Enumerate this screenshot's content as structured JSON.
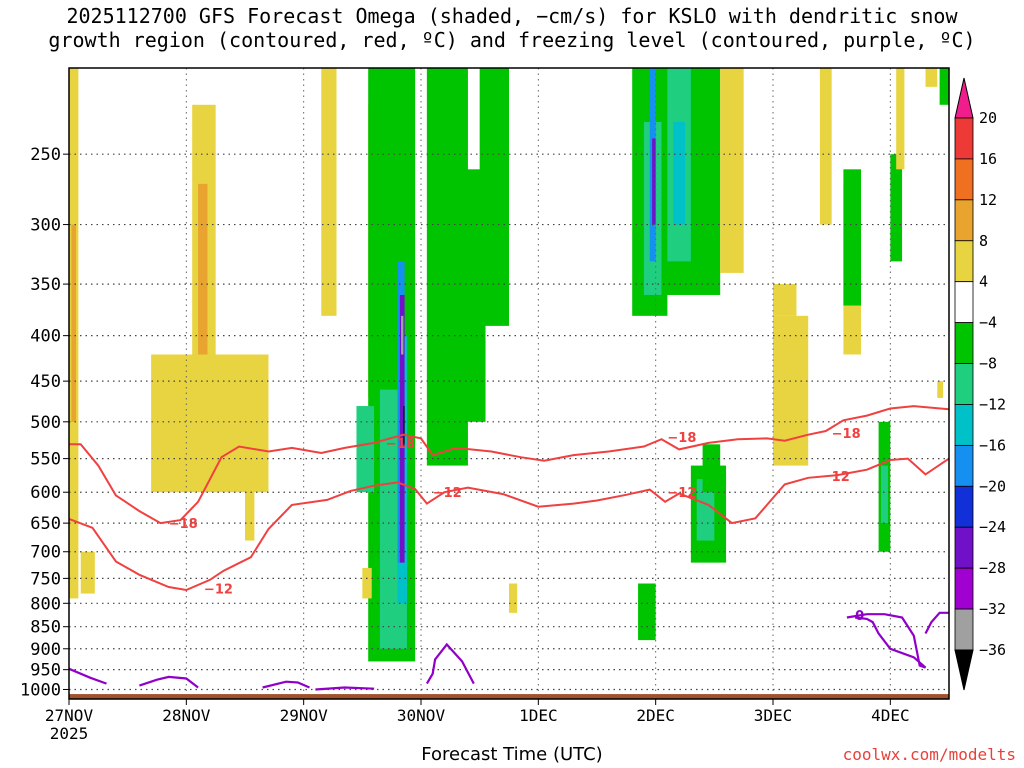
{
  "chart_data": {
    "type": "heatmap",
    "title_line1": "2025112700 GFS Forecast Omega (shaded, −cm/s) for KSLO with dendritic snow",
    "title_line2": "growth region (contoured, red, ºC) and freezing level (contoured, purple, ºC)",
    "xlabel": "Forecast Time (UTC)",
    "credit": "coolwx.com/modelts",
    "x_ticks": [
      {
        "label": "27NOV",
        "sub": "2025",
        "day": 0
      },
      {
        "label": "28NOV",
        "day": 1
      },
      {
        "label": "29NOV",
        "day": 2
      },
      {
        "label": "30NOV",
        "day": 3
      },
      {
        "label": "1DEC",
        "day": 4
      },
      {
        "label": "2DEC",
        "day": 5
      },
      {
        "label": "3DEC",
        "day": 6
      },
      {
        "label": "4DEC",
        "day": 7
      }
    ],
    "xlim": [
      0,
      7.5
    ],
    "y_ticks": [
      250,
      300,
      350,
      400,
      450,
      500,
      550,
      600,
      650,
      700,
      750,
      800,
      850,
      900,
      950,
      1000
    ],
    "ylim": [
      1025,
      200
    ],
    "y_log": true,
    "grid": true,
    "colorbar": {
      "labels": [
        "20",
        "16",
        "12",
        "8",
        "4",
        "−4",
        "−8",
        "−12",
        "−16",
        "−20",
        "−24",
        "−28",
        "−32",
        "−36"
      ],
      "colors": [
        "#f01e8c",
        "#ee3a36",
        "#ee7020",
        "#e9a430",
        "#e8d440",
        "#ffffff",
        "#00c400",
        "#1fce7e",
        "#00c0c8",
        "#1690f0",
        "#1230d8",
        "#7010c8",
        "#a000d0",
        "#a0a0a0",
        "#000000"
      ]
    },
    "contour_labels": [
      "−18",
      "−12",
      "−18",
      "−12",
      "−18",
      "12",
      "−18",
      "−12",
      "0"
    ],
    "dgz_top": [
      [
        0,
        530
      ],
      [
        0.1,
        530
      ],
      [
        0.25,
        560
      ],
      [
        0.4,
        605
      ],
      [
        0.6,
        630
      ],
      [
        0.78,
        650
      ],
      [
        0.95,
        645
      ],
      [
        1.1,
        615
      ],
      [
        1.3,
        548
      ],
      [
        1.45,
        533
      ],
      [
        1.7,
        540
      ],
      [
        1.9,
        535
      ],
      [
        2.15,
        542
      ],
      [
        2.35,
        535
      ],
      [
        2.6,
        528
      ],
      [
        2.85,
        517
      ],
      [
        3.0,
        522
      ],
      [
        3.1,
        545
      ],
      [
        3.3,
        535
      ],
      [
        3.6,
        540
      ],
      [
        3.85,
        548
      ],
      [
        4.05,
        553
      ],
      [
        4.3,
        545
      ],
      [
        4.6,
        540
      ],
      [
        4.9,
        533
      ],
      [
        5.05,
        523
      ],
      [
        5.2,
        537
      ],
      [
        5.45,
        528
      ],
      [
        5.7,
        523
      ],
      [
        5.95,
        522
      ],
      [
        6.1,
        525
      ],
      [
        6.3,
        517
      ],
      [
        6.45,
        512
      ],
      [
        6.6,
        498
      ],
      [
        6.8,
        492
      ],
      [
        7.0,
        483
      ],
      [
        7.2,
        480
      ],
      [
        7.5,
        484
      ]
    ],
    "dgz_bottom": [
      [
        0,
        643
      ],
      [
        0.2,
        658
      ],
      [
        0.4,
        718
      ],
      [
        0.6,
        743
      ],
      [
        0.85,
        767
      ],
      [
        1.0,
        773
      ],
      [
        1.2,
        753
      ],
      [
        1.32,
        735
      ],
      [
        1.55,
        710
      ],
      [
        1.7,
        660
      ],
      [
        1.9,
        620
      ],
      [
        2.2,
        612
      ],
      [
        2.4,
        598
      ],
      [
        2.6,
        590
      ],
      [
        2.8,
        585
      ],
      [
        2.95,
        595
      ],
      [
        3.05,
        618
      ],
      [
        3.2,
        600
      ],
      [
        3.4,
        593
      ],
      [
        3.7,
        603
      ],
      [
        4.0,
        623
      ],
      [
        4.3,
        618
      ],
      [
        4.5,
        613
      ],
      [
        4.75,
        604
      ],
      [
        4.95,
        596
      ],
      [
        5.08,
        615
      ],
      [
        5.2,
        602
      ],
      [
        5.45,
        620
      ],
      [
        5.65,
        650
      ],
      [
        5.85,
        642
      ],
      [
        6.1,
        588
      ],
      [
        6.3,
        578
      ],
      [
        6.55,
        574
      ],
      [
        6.8,
        566
      ],
      [
        7.0,
        552
      ],
      [
        7.15,
        550
      ],
      [
        7.3,
        573
      ],
      [
        7.5,
        550
      ]
    ],
    "freezing_level_segments": [
      [
        [
          0,
          948
        ],
        [
          0.18,
          970
        ],
        [
          0.32,
          985
        ]
      ],
      [
        [
          0.6,
          990
        ],
        [
          0.75,
          975
        ],
        [
          0.85,
          968
        ],
        [
          1.0,
          972
        ],
        [
          1.1,
          995
        ]
      ],
      [
        [
          1.65,
          995
        ],
        [
          1.85,
          980
        ],
        [
          1.95,
          982
        ],
        [
          2.05,
          995
        ]
      ],
      [
        [
          2.1,
          1000
        ],
        [
          2.35,
          995
        ],
        [
          2.6,
          998
        ]
      ],
      [
        [
          3.05,
          985
        ],
        [
          3.1,
          960
        ],
        [
          3.12,
          925
        ],
        [
          3.22,
          890
        ],
        [
          3.35,
          930
        ],
        [
          3.45,
          985
        ]
      ],
      [
        [
          6.63,
          830
        ],
        [
          6.8,
          823
        ],
        [
          6.95,
          823
        ],
        [
          7.1,
          830
        ],
        [
          7.2,
          870
        ],
        [
          7.25,
          940
        ],
        [
          7.3,
          945
        ],
        [
          7.2,
          920
        ],
        [
          7.0,
          900
        ],
        [
          6.9,
          865
        ],
        [
          6.85,
          840
        ],
        [
          6.8,
          833
        ],
        [
          6.7,
          830
        ]
      ],
      [
        [
          7.3,
          865
        ],
        [
          7.35,
          840
        ],
        [
          7.42,
          820
        ],
        [
          7.5,
          820
        ]
      ]
    ],
    "shaded_regions": [
      {
        "color": "#e8d440",
        "x0": 0.0,
        "x1": 0.08,
        "p0": 200,
        "p1": 790
      },
      {
        "color": "#e9a430",
        "x0": 0.02,
        "x1": 0.06,
        "p0": 300,
        "p1": 500
      },
      {
        "color": "#e8d440",
        "x0": 0.1,
        "x1": 0.22,
        "p0": 700,
        "p1": 780
      },
      {
        "color": "#e8d440",
        "x0": 1.05,
        "x1": 1.25,
        "p0": 220,
        "p1": 560
      },
      {
        "color": "#e9a430",
        "x0": 1.1,
        "x1": 1.18,
        "p0": 270,
        "p1": 440
      },
      {
        "color": "#e8d440",
        "x0": 0.7,
        "x1": 1.7,
        "p0": 420,
        "p1": 600
      },
      {
        "color": "#e8d440",
        "x0": 1.5,
        "x1": 1.58,
        "p0": 470,
        "p1": 680
      },
      {
        "color": "#e8d440",
        "x0": 2.15,
        "x1": 2.28,
        "p0": 200,
        "p1": 380
      },
      {
        "color": "#e8d440",
        "x0": 2.55,
        "x1": 2.75,
        "p0": 220,
        "p1": 470
      },
      {
        "color": "#00c400",
        "x0": 2.55,
        "x1": 2.95,
        "p0": 200,
        "p1": 930
      },
      {
        "color": "#00c400",
        "x0": 3.05,
        "x1": 3.4,
        "p0": 200,
        "p1": 560
      },
      {
        "color": "#00c400",
        "x0": 3.15,
        "x1": 3.55,
        "p0": 260,
        "p1": 500
      },
      {
        "color": "#1fce7e",
        "x0": 2.65,
        "x1": 2.88,
        "p0": 460,
        "p1": 900
      },
      {
        "color": "#00c0c8",
        "x0": 2.8,
        "x1": 2.88,
        "p0": 400,
        "p1": 800
      },
      {
        "color": "#1690f0",
        "x0": 2.8,
        "x1": 2.86,
        "p0": 330,
        "p1": 720
      },
      {
        "color": "#7010c8",
        "x0": 2.82,
        "x1": 2.86,
        "p0": 360,
        "p1": 720
      },
      {
        "color": "#a0a0a0",
        "x0": 2.83,
        "x1": 2.85,
        "p0": 380,
        "p1": 420
      },
      {
        "color": "#000000",
        "x0": 2.85,
        "x1": 2.86,
        "p0": 480,
        "p1": 530
      },
      {
        "color": "#1fce7e",
        "x0": 2.45,
        "x1": 2.6,
        "p0": 480,
        "p1": 600
      },
      {
        "color": "#00c400",
        "x0": 3.5,
        "x1": 3.75,
        "p0": 200,
        "p1": 390
      },
      {
        "color": "#e8d440",
        "x0": 2.5,
        "x1": 2.58,
        "p0": 730,
        "p1": 790
      },
      {
        "color": "#e8d440",
        "x0": 3.75,
        "x1": 3.82,
        "p0": 760,
        "p1": 820
      },
      {
        "color": "#00c400",
        "x0": 4.8,
        "x1": 5.1,
        "p0": 200,
        "p1": 380
      },
      {
        "color": "#1fce7e",
        "x0": 4.9,
        "x1": 5.05,
        "p0": 230,
        "p1": 360
      },
      {
        "color": "#1690f0",
        "x0": 4.95,
        "x1": 5.0,
        "p0": 200,
        "p1": 330
      },
      {
        "color": "#7010c8",
        "x0": 4.97,
        "x1": 5.0,
        "p0": 240,
        "p1": 300
      },
      {
        "color": "#00c400",
        "x0": 5.05,
        "x1": 5.55,
        "p0": 200,
        "p1": 360
      },
      {
        "color": "#1fce7e",
        "x0": 5.1,
        "x1": 5.3,
        "p0": 200,
        "p1": 330
      },
      {
        "color": "#00c0c8",
        "x0": 5.15,
        "x1": 5.25,
        "p0": 230,
        "p1": 300
      },
      {
        "color": "#00c400",
        "x0": 5.3,
        "x1": 5.6,
        "p0": 560,
        "p1": 720
      },
      {
        "color": "#1fce7e",
        "x0": 5.35,
        "x1": 5.5,
        "p0": 580,
        "p1": 680
      },
      {
        "color": "#00c400",
        "x0": 5.4,
        "x1": 5.55,
        "p0": 530,
        "p1": 600
      },
      {
        "color": "#00c400",
        "x0": 4.85,
        "x1": 5.0,
        "p0": 760,
        "p1": 880
      },
      {
        "color": "#e8d440",
        "x0": 5.55,
        "x1": 5.75,
        "p0": 200,
        "p1": 340
      },
      {
        "color": "#e8d440",
        "x0": 6.0,
        "x1": 6.3,
        "p0": 380,
        "p1": 560
      },
      {
        "color": "#e8d440",
        "x0": 6.4,
        "x1": 6.5,
        "p0": 200,
        "p1": 300
      },
      {
        "color": "#e8d440",
        "x0": 6.6,
        "x1": 6.75,
        "p0": 270,
        "p1": 420
      },
      {
        "color": "#e8d440",
        "x0": 6.0,
        "x1": 6.2,
        "p0": 350,
        "p1": 380
      },
      {
        "color": "#00c400",
        "x0": 6.6,
        "x1": 6.75,
        "p0": 260,
        "p1": 370
      },
      {
        "color": "#00c400",
        "x0": 7.0,
        "x1": 7.1,
        "p0": 250,
        "p1": 330
      },
      {
        "color": "#00c400",
        "x0": 6.9,
        "x1": 7.0,
        "p0": 500,
        "p1": 700
      },
      {
        "color": "#1fce7e",
        "x0": 6.92,
        "x1": 6.98,
        "p0": 560,
        "p1": 650
      },
      {
        "color": "#e8d440",
        "x0": 7.05,
        "x1": 7.12,
        "p0": 200,
        "p1": 260
      },
      {
        "color": "#e8d440",
        "x0": 7.3,
        "x1": 7.4,
        "p0": 200,
        "p1": 210
      },
      {
        "color": "#00c400",
        "x0": 7.42,
        "x1": 7.5,
        "p0": 200,
        "p1": 220
      },
      {
        "color": "#e8d440",
        "x0": 7.4,
        "x1": 7.45,
        "p0": 450,
        "p1": 470
      }
    ]
  }
}
